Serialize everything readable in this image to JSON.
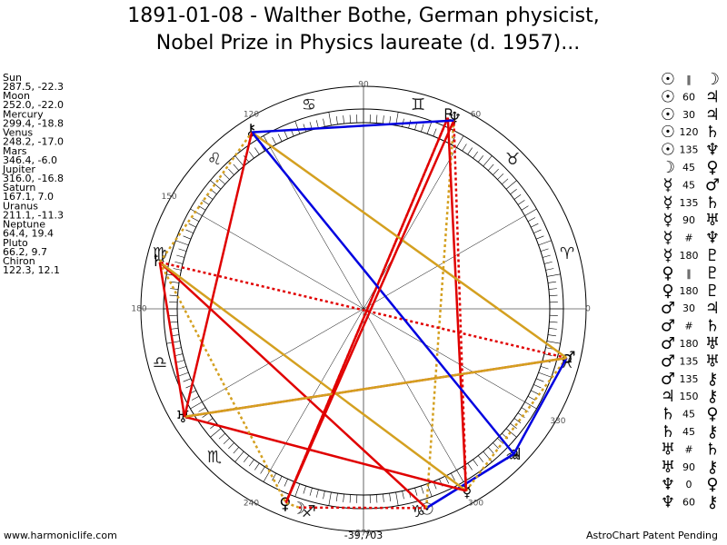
{
  "title": [
    "1891-01-08 - Walther Bothe, German physicist,",
    "Nobel Prize in Physics laureate (d. 1957)..."
  ],
  "planets": [
    {
      "name": "Sun",
      "glyph": "☉",
      "coords": "287.5, -22.3"
    },
    {
      "name": "Moon",
      "glyph": "☽",
      "coords": "252.0, -22.0"
    },
    {
      "name": "Mercury",
      "glyph": "☿",
      "coords": "299.4, -18.8"
    },
    {
      "name": "Venus",
      "glyph": "♀",
      "coords": "248.2, -17.0"
    },
    {
      "name": "Mars",
      "glyph": "♂",
      "coords": "346.4, -6.0"
    },
    {
      "name": "Jupiter",
      "glyph": "♃",
      "coords": "316.0, -16.8"
    },
    {
      "name": "Saturn",
      "glyph": "♄",
      "coords": "167.1, 7.0"
    },
    {
      "name": "Uranus",
      "glyph": "♅",
      "coords": "211.1, -11.3"
    },
    {
      "name": "Neptune",
      "glyph": "♆",
      "coords": "64.4, 19.4"
    },
    {
      "name": "Pluto",
      "glyph": "♇",
      "coords": "66.2, 9.7"
    },
    {
      "name": "Chiron",
      "glyph": "⚷",
      "coords": "122.3, 12.1"
    }
  ],
  "signs": [
    "♈",
    "♉",
    "♊",
    "♋",
    "♌",
    "♍",
    "♎",
    "♏",
    "♐",
    "♑",
    "♒",
    "♓"
  ],
  "degree_labels": [
    0,
    60,
    90,
    120,
    150,
    180,
    240,
    270,
    300,
    330
  ],
  "aspects": [
    {
      "a": "☉",
      "aspect": "‖",
      "b": "☽",
      "color": "#e00000",
      "dashed": true
    },
    {
      "a": "☉",
      "aspect": "60",
      "b": "♃",
      "color": "#0000e0",
      "dashed": false
    },
    {
      "a": "☉",
      "aspect": "30",
      "b": "♃",
      "color": "#0000e0",
      "dashed": false
    },
    {
      "a": "☉",
      "aspect": "120",
      "b": "♄",
      "color": "#e00000",
      "dashed": false
    },
    {
      "a": "☉",
      "aspect": "135",
      "b": "♆",
      "color": "#d4a020",
      "dashed": true
    },
    {
      "a": "☽",
      "aspect": "45",
      "b": "♀",
      "color": "#d4a020",
      "dashed": true
    },
    {
      "a": "☿",
      "aspect": "45",
      "b": "♂",
      "color": "#d4a020",
      "dashed": true
    },
    {
      "a": "☿",
      "aspect": "135",
      "b": "♄",
      "color": "#d4a020",
      "dashed": false
    },
    {
      "a": "☿",
      "aspect": "90",
      "b": "♅",
      "color": "#e00000",
      "dashed": false
    },
    {
      "a": "☿",
      "aspect": "#",
      "b": "♆",
      "color": "#e00000",
      "dashed": true
    },
    {
      "a": "☿",
      "aspect": "180",
      "b": "♇",
      "color": "#e00000",
      "dashed": false
    },
    {
      "a": "♀",
      "aspect": "‖",
      "b": "♇",
      "color": "#e00000",
      "dashed": true
    },
    {
      "a": "♀",
      "aspect": "180",
      "b": "♇",
      "color": "#e00000",
      "dashed": false
    },
    {
      "a": "♂",
      "aspect": "30",
      "b": "♃",
      "color": "#0000e0",
      "dashed": false
    },
    {
      "a": "♂",
      "aspect": "#",
      "b": "♄",
      "color": "#e00000",
      "dashed": true
    },
    {
      "a": "♂",
      "aspect": "180",
      "b": "♅",
      "color": "#e00000",
      "dashed": false
    },
    {
      "a": "♂",
      "aspect": "135",
      "b": "♅",
      "color": "#d4a020",
      "dashed": false
    },
    {
      "a": "♂",
      "aspect": "135",
      "b": "⚷",
      "color": "#d4a020",
      "dashed": false
    },
    {
      "a": "♃",
      "aspect": "150",
      "b": "⚷",
      "color": "#0000e0",
      "dashed": false
    },
    {
      "a": "♄",
      "aspect": "45",
      "b": "♀",
      "color": "#d4a020",
      "dashed": true
    },
    {
      "a": "♄",
      "aspect": "45",
      "b": "⚷",
      "color": "#d4a020",
      "dashed": true
    },
    {
      "a": "♅",
      "aspect": "#",
      "b": "♄",
      "color": "#e00000",
      "dashed": false
    },
    {
      "a": "♅",
      "aspect": "90",
      "b": "⚷",
      "color": "#e00000",
      "dashed": false
    },
    {
      "a": "♆",
      "aspect": "0",
      "b": "♀",
      "color": "#e00000",
      "dashed": false
    },
    {
      "a": "♆",
      "aspect": "60",
      "b": "⚷",
      "color": "#0000e0",
      "dashed": false
    }
  ],
  "footer": {
    "left": "www.harmoniclife.com",
    "center": "-39,703",
    "right": "AstroChart Patent Pending"
  }
}
